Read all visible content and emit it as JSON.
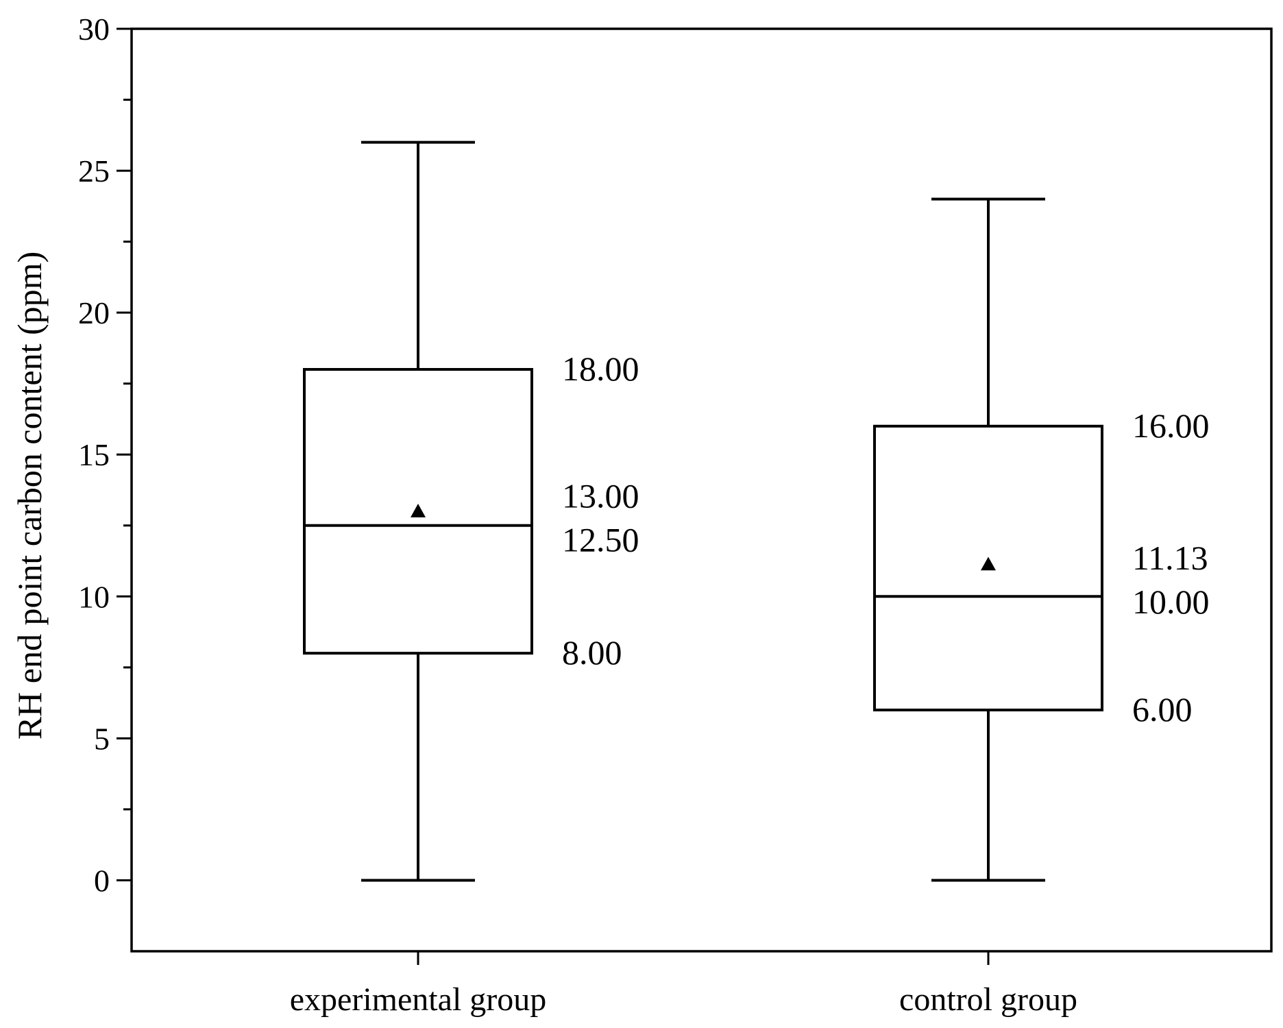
{
  "chart_data": {
    "type": "box",
    "ylabel": "RH end point carbon content (ppm)",
    "xlabel": "",
    "ylim": [
      -2.5,
      30
    ],
    "yticks": [
      0,
      5,
      10,
      15,
      20,
      25,
      30
    ],
    "grid": false,
    "categories": [
      "experimental group",
      "control group"
    ],
    "boxes": [
      {
        "category": "experimental group",
        "min": 0,
        "q1": 8.0,
        "median": 12.5,
        "mean": 13.0,
        "q3": 18.0,
        "max": 26,
        "labels": [
          "18.00",
          "13.00",
          "12.50",
          "8.00"
        ]
      },
      {
        "category": "control group",
        "min": 0,
        "q1": 6.0,
        "median": 10.0,
        "mean": 11.13,
        "q3": 16.0,
        "max": 24,
        "labels": [
          "16.00",
          "11.13",
          "10.00",
          "6.00"
        ]
      }
    ]
  }
}
